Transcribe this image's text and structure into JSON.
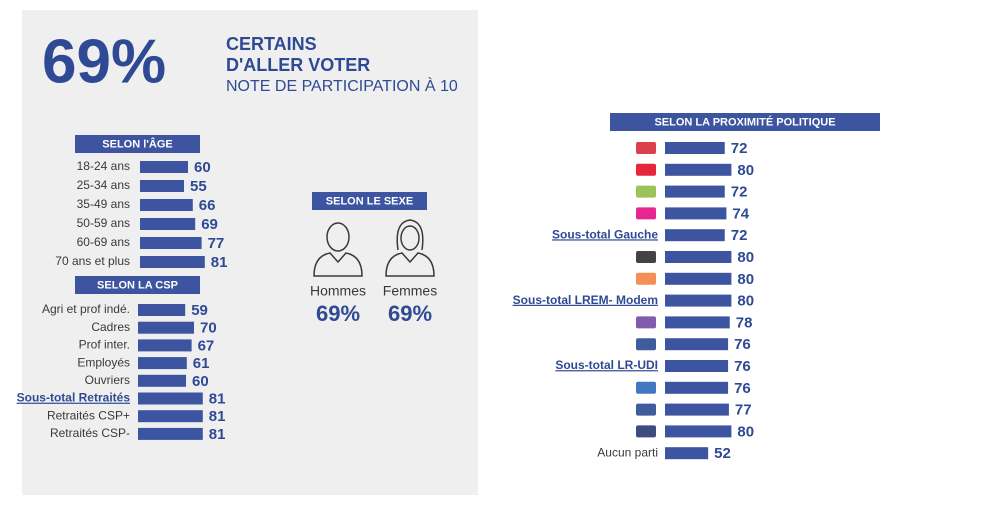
{
  "header": {
    "big": "69%",
    "line1": "CERTAINS",
    "line2": "D'ALLER VOTER",
    "line3": "NOTE DE PARTICIPATION À 10"
  },
  "chart_data": [
    {
      "type": "bar",
      "title": "SELON l'ÂGE",
      "color": "#3d55a0",
      "categories": [
        "18-24 ans",
        "25-34 ans",
        "35-49 ans",
        "50-59 ans",
        "60-69 ans",
        "70 ans et plus"
      ],
      "values": [
        60,
        55,
        66,
        69,
        77,
        81
      ]
    },
    {
      "type": "bar",
      "title": "SELON LA CSP",
      "color": "#3d55a0",
      "categories": [
        "Agri et prof indé.",
        "Cadres",
        "Prof inter.",
        "Employés",
        "Ouvriers",
        "Sous-total Retraités",
        "Retraités CSP+",
        "Retraités CSP-"
      ],
      "values": [
        59,
        70,
        67,
        61,
        60,
        81,
        81,
        81
      ]
    },
    {
      "type": "gender",
      "title": "SELON LE SEXE",
      "color": "#3d55a0",
      "categories": [
        "Hommes",
        "Femmes"
      ],
      "values": [
        69,
        69
      ],
      "value_labels": [
        "69%",
        "69%"
      ]
    },
    {
      "type": "bar",
      "title": "SELON LA PROXIMITÉ POLITIQUE",
      "color": "#3d55a0",
      "categories": [
        null,
        null,
        null,
        null,
        "Sous-total Gauche",
        null,
        null,
        "Sous-total LREM- Modem",
        null,
        null,
        "Sous-total LR-UDI",
        null,
        null,
        null,
        "Aucun parti"
      ],
      "values": [
        72,
        80,
        72,
        74,
        72,
        80,
        80,
        80,
        78,
        76,
        76,
        76,
        77,
        80,
        52
      ]
    }
  ]
}
